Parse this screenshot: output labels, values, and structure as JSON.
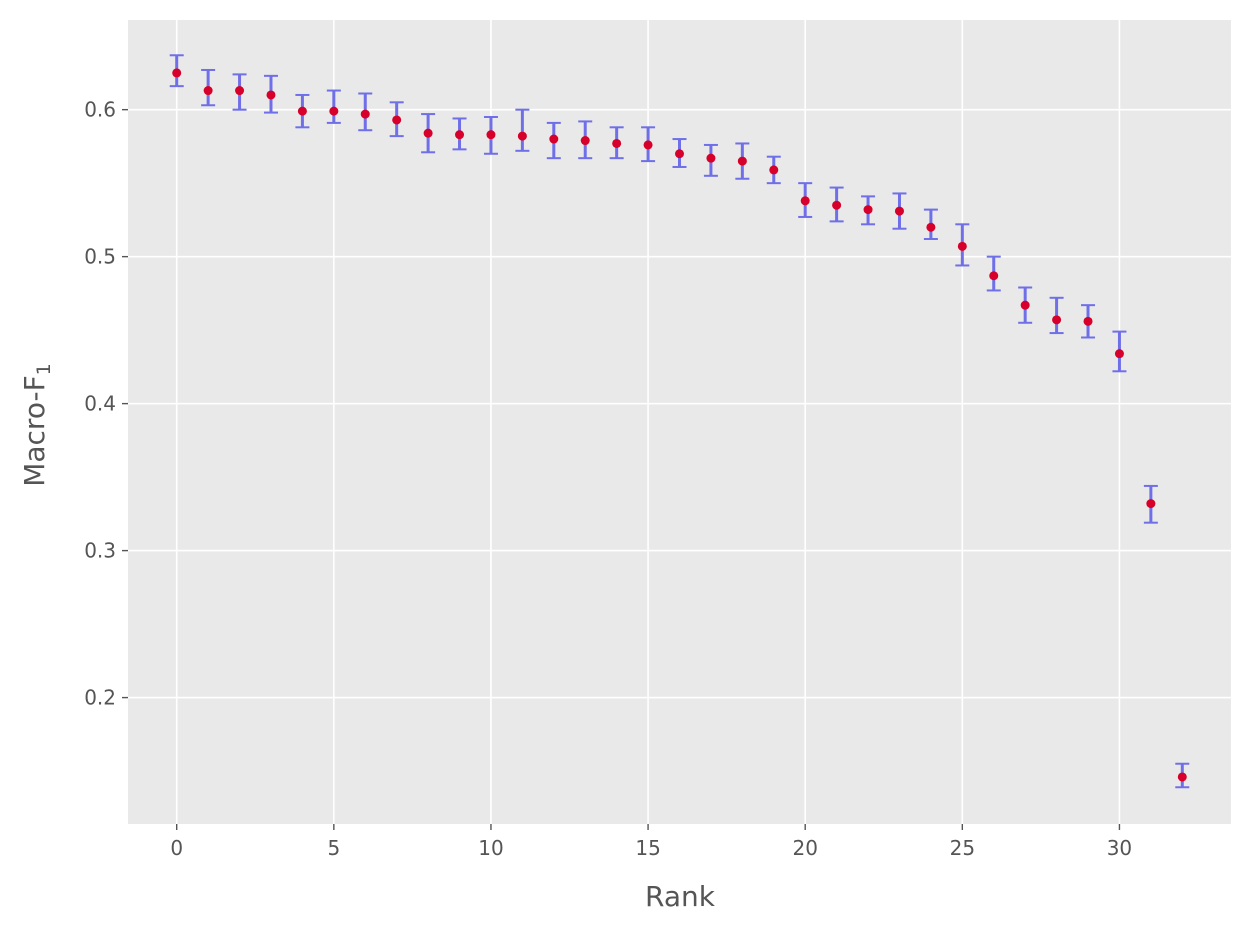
{
  "chart_data": {
    "type": "scatter",
    "title": "",
    "xlabel": "Rank",
    "ylabel": "Macro-F",
    "ylabel_subscript": "1",
    "xlim": [
      -1.55,
      33.55
    ],
    "ylim": [
      0.114,
      0.661
    ],
    "xticks": [
      0,
      5,
      10,
      15,
      20,
      25,
      30
    ],
    "yticks": [
      0.2,
      0.3,
      0.4,
      0.5,
      0.6
    ],
    "xtick_labels": [
      "0",
      "5",
      "10",
      "15",
      "20",
      "25",
      "30"
    ],
    "ytick_labels": [
      "0.2",
      "0.3",
      "0.4",
      "0.5",
      "0.6"
    ],
    "grid": true,
    "background": "#E9E9E9",
    "grid_color": "#FFFFFF",
    "point_color": "#D6002A",
    "errorbar_color": "#6F6FE8",
    "series": [
      {
        "x": [
          0,
          1,
          2,
          3,
          4,
          5,
          6,
          7,
          8,
          9,
          10,
          11,
          12,
          13,
          14,
          15,
          16,
          17,
          18,
          19,
          20,
          21,
          22,
          23,
          24,
          25,
          26,
          27,
          28,
          29,
          30,
          31,
          32
        ],
        "y": [
          0.625,
          0.613,
          0.613,
          0.61,
          0.599,
          0.599,
          0.597,
          0.593,
          0.584,
          0.583,
          0.583,
          0.582,
          0.58,
          0.579,
          0.577,
          0.576,
          0.57,
          0.567,
          0.565,
          0.559,
          0.538,
          0.535,
          0.532,
          0.531,
          0.52,
          0.507,
          0.487,
          0.467,
          0.457,
          0.456,
          0.434,
          0.332,
          0.146
        ],
        "err_low": [
          0.616,
          0.603,
          0.6,
          0.598,
          0.588,
          0.591,
          0.586,
          0.582,
          0.571,
          0.573,
          0.57,
          0.572,
          0.567,
          0.567,
          0.567,
          0.565,
          0.561,
          0.555,
          0.553,
          0.55,
          0.527,
          0.524,
          0.522,
          0.519,
          0.512,
          0.494,
          0.477,
          0.455,
          0.448,
          0.445,
          0.422,
          0.319,
          0.139
        ],
        "err_high": [
          0.637,
          0.627,
          0.624,
          0.623,
          0.61,
          0.613,
          0.611,
          0.605,
          0.597,
          0.594,
          0.595,
          0.6,
          0.591,
          0.592,
          0.588,
          0.588,
          0.58,
          0.576,
          0.577,
          0.568,
          0.55,
          0.547,
          0.541,
          0.543,
          0.532,
          0.522,
          0.5,
          0.479,
          0.472,
          0.467,
          0.449,
          0.344,
          0.155
        ]
      }
    ]
  }
}
